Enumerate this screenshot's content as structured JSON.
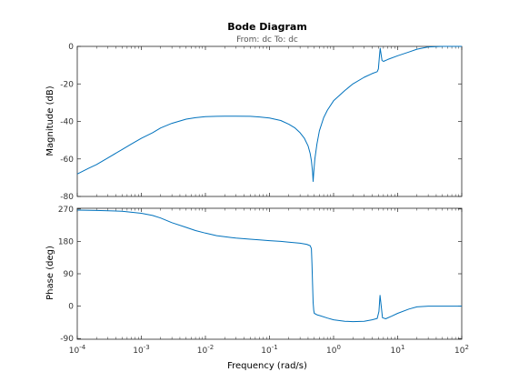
{
  "chart_data": {
    "type": "line",
    "title": "Bode Diagram",
    "subtitle": "From: dc  To: dc",
    "xlabel": "Frequency  (rad/s)",
    "x_scale": "log",
    "xlim": [
      0.0001,
      100
    ],
    "x_ticks": [
      {
        "base": "10",
        "exp": "-4"
      },
      {
        "base": "10",
        "exp": "-3"
      },
      {
        "base": "10",
        "exp": "-2"
      },
      {
        "base": "10",
        "exp": "-1"
      },
      {
        "base": "10",
        "exp": "0"
      },
      {
        "base": "10",
        "exp": "1"
      },
      {
        "base": "10",
        "exp": "2"
      }
    ],
    "grid": false,
    "line_color": "#0072bd",
    "subplots": [
      {
        "ylabel": "Magnitude (dB)",
        "ylim": [
          -80,
          0
        ],
        "y_ticks": [
          0,
          -20,
          -40,
          -60,
          -80
        ],
        "points": [
          [
            0.0001,
            -68
          ],
          [
            0.00015,
            -65
          ],
          [
            0.0002,
            -63
          ],
          [
            0.0003,
            -59.5
          ],
          [
            0.0005,
            -55
          ],
          [
            0.0007,
            -52
          ],
          [
            0.001,
            -49
          ],
          [
            0.0015,
            -46
          ],
          [
            0.002,
            -43.5
          ],
          [
            0.003,
            -41
          ],
          [
            0.005,
            -38.8
          ],
          [
            0.007,
            -38
          ],
          [
            0.01,
            -37.5
          ],
          [
            0.015,
            -37.3
          ],
          [
            0.02,
            -37.2
          ],
          [
            0.03,
            -37.2
          ],
          [
            0.05,
            -37.3
          ],
          [
            0.07,
            -37.6
          ],
          [
            0.1,
            -38.2
          ],
          [
            0.15,
            -39.5
          ],
          [
            0.2,
            -41.5
          ],
          [
            0.25,
            -43.5
          ],
          [
            0.3,
            -46
          ],
          [
            0.35,
            -49
          ],
          [
            0.4,
            -53
          ],
          [
            0.43,
            -57
          ],
          [
            0.45,
            -61
          ],
          [
            0.47,
            -67
          ],
          [
            0.48,
            -72
          ],
          [
            0.49,
            -67
          ],
          [
            0.51,
            -60
          ],
          [
            0.55,
            -52
          ],
          [
            0.6,
            -45
          ],
          [
            0.7,
            -38
          ],
          [
            0.8,
            -34
          ],
          [
            1,
            -29
          ],
          [
            1.5,
            -23.5
          ],
          [
            2,
            -20
          ],
          [
            3,
            -16.5
          ],
          [
            4,
            -14.5
          ],
          [
            4.8,
            -13.5
          ],
          [
            5,
            -12
          ],
          [
            5.2,
            -5
          ],
          [
            5.35,
            -1
          ],
          [
            5.5,
            -4
          ],
          [
            5.7,
            -7.5
          ],
          [
            6,
            -8
          ],
          [
            7,
            -7
          ],
          [
            10,
            -5
          ],
          [
            15,
            -3
          ],
          [
            20,
            -1.5
          ],
          [
            30,
            -0.3
          ],
          [
            50,
            0
          ],
          [
            100,
            0
          ]
        ]
      },
      {
        "ylabel": "Phase (deg)",
        "ylim": [
          -92,
          272
        ],
        "y_ticks": [
          270,
          180,
          90,
          0,
          -90
        ],
        "points": [
          [
            0.0001,
            267
          ],
          [
            0.0002,
            266
          ],
          [
            0.0005,
            264
          ],
          [
            0.001,
            258
          ],
          [
            0.0015,
            252
          ],
          [
            0.002,
            245
          ],
          [
            0.003,
            232
          ],
          [
            0.005,
            219
          ],
          [
            0.007,
            210
          ],
          [
            0.01,
            203
          ],
          [
            0.015,
            196
          ],
          [
            0.02,
            193
          ],
          [
            0.03,
            189
          ],
          [
            0.05,
            186
          ],
          [
            0.07,
            184
          ],
          [
            0.1,
            182
          ],
          [
            0.15,
            180
          ],
          [
            0.2,
            178
          ],
          [
            0.3,
            175
          ],
          [
            0.38,
            172
          ],
          [
            0.43,
            168
          ],
          [
            0.45,
            160
          ],
          [
            0.46,
            120
          ],
          [
            0.47,
            60
          ],
          [
            0.48,
            10
          ],
          [
            0.49,
            -12
          ],
          [
            0.5,
            -20
          ],
          [
            0.55,
            -24
          ],
          [
            0.6,
            -26
          ],
          [
            0.8,
            -33
          ],
          [
            1,
            -38
          ],
          [
            1.5,
            -42
          ],
          [
            2,
            -43
          ],
          [
            3,
            -42
          ],
          [
            4,
            -38
          ],
          [
            4.8,
            -34
          ],
          [
            5.1,
            -15
          ],
          [
            5.3,
            30
          ],
          [
            5.5,
            5
          ],
          [
            5.8,
            -32
          ],
          [
            6.5,
            -35
          ],
          [
            8,
            -28
          ],
          [
            10,
            -20
          ],
          [
            15,
            -8
          ],
          [
            20,
            -2
          ],
          [
            30,
            0
          ],
          [
            50,
            0
          ],
          [
            100,
            0
          ]
        ]
      }
    ]
  }
}
